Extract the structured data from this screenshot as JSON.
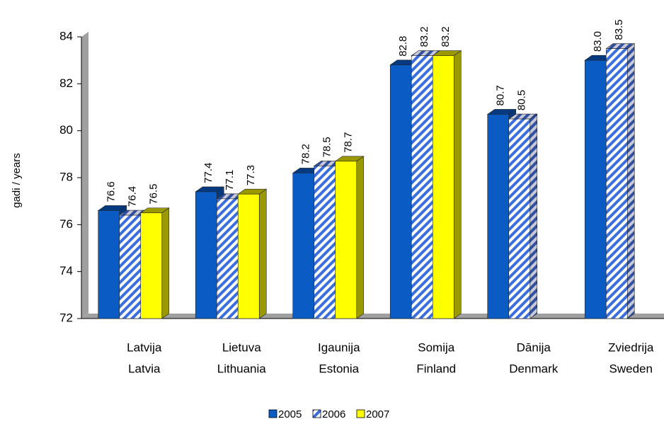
{
  "chart_data": {
    "type": "bar",
    "ylabel": "gadi / years",
    "categories": [
      [
        "Latvija",
        "Latvia"
      ],
      [
        "Lietuva",
        "Lithuania"
      ],
      [
        "Igaunija",
        "Estonia"
      ],
      [
        "Somija",
        "Finland"
      ],
      [
        "Dānija",
        "Denmark"
      ],
      [
        "Zviedrija",
        "Sweden"
      ]
    ],
    "series": [
      {
        "name": "2005",
        "color": "#0a5cc4",
        "values": [
          76.6,
          77.4,
          78.2,
          82.8,
          80.7,
          83
        ],
        "value_labels": [
          "76.6",
          "77.4",
          "78.2",
          "82.8",
          "80.7",
          "83.0"
        ]
      },
      {
        "name": "2006",
        "color": "#3a6ee0",
        "hatch": true,
        "values": [
          76.4,
          77.1,
          78.5,
          83.2,
          80.5,
          83.5
        ],
        "value_labels": [
          "76.4",
          "77.1",
          "78.5",
          "83.2",
          "80.5",
          "83.5"
        ]
      },
      {
        "name": "2007",
        "color": "#ffff00",
        "values": [
          76.5,
          77.3,
          78.7,
          83.2,
          null,
          null
        ],
        "value_labels": [
          "76.5",
          "77.3",
          "78.7",
          "83.2",
          null,
          null
        ]
      }
    ],
    "ylim": [
      72,
      84
    ],
    "yticks": [
      72,
      74,
      76,
      78,
      80,
      82,
      84
    ],
    "legend": "bottom"
  }
}
